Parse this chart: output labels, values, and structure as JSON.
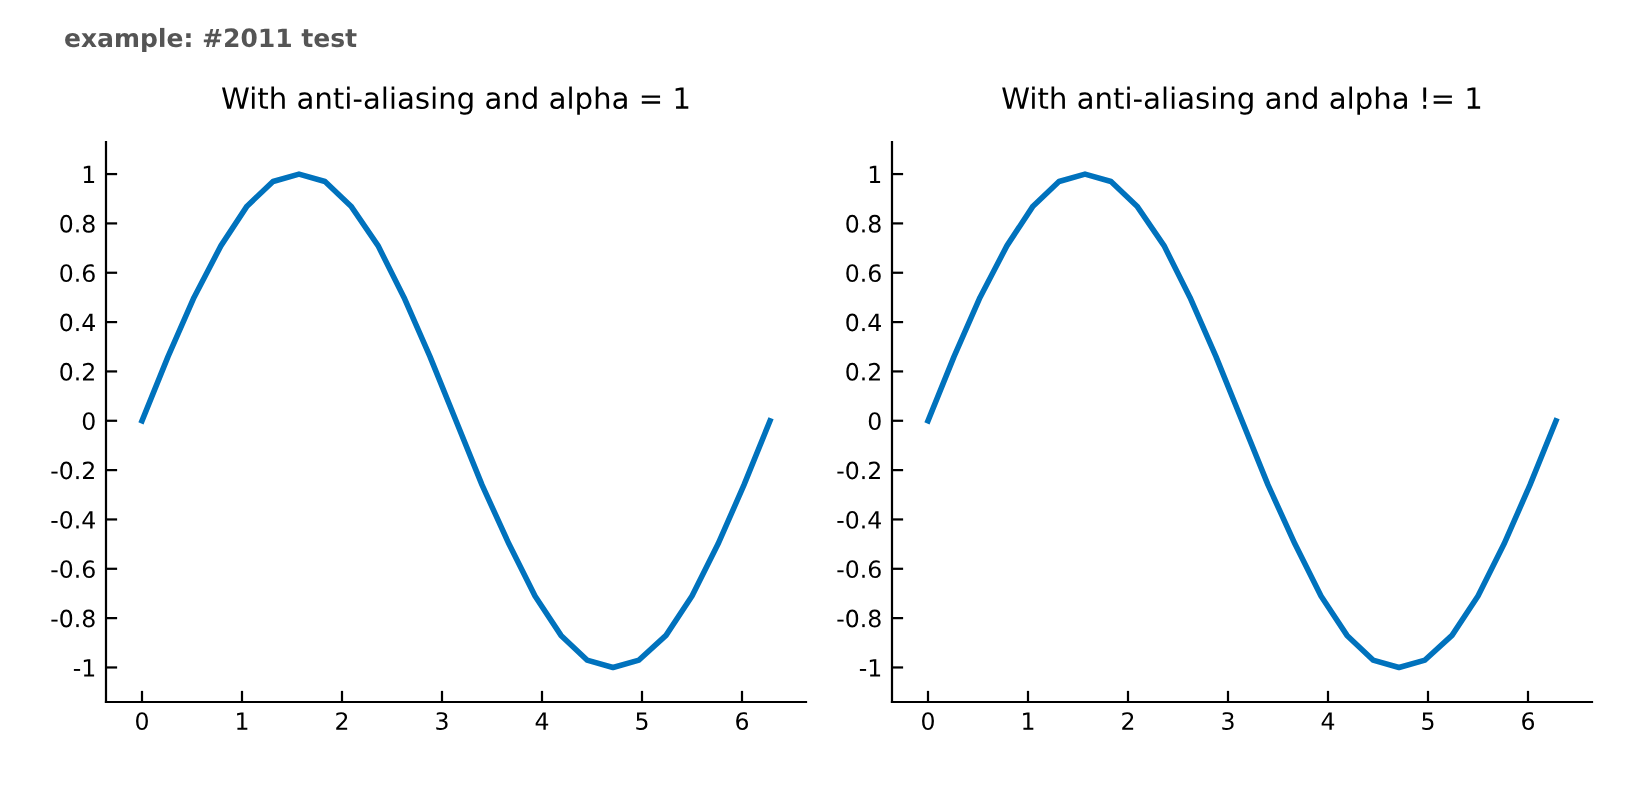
{
  "chart_data": [
    {
      "type": "line",
      "title": "With anti-aliasing and alpha = 1",
      "annotations": [
        "example: #2011 test"
      ],
      "x": [
        0,
        0.26,
        0.52,
        0.79,
        1.05,
        1.31,
        1.57,
        1.83,
        2.09,
        2.36,
        2.62,
        2.88,
        3.14,
        3.4,
        3.67,
        3.93,
        4.19,
        4.45,
        4.71,
        4.97,
        5.24,
        5.5,
        5.76,
        6.02,
        6.28
      ],
      "series": [
        {
          "color": "#0072bd",
          "values": [
            0,
            0.26,
            0.5,
            0.71,
            0.87,
            0.97,
            1,
            0.97,
            0.87,
            0.71,
            0.5,
            0.26,
            0,
            -0.26,
            -0.5,
            -0.71,
            -0.87,
            -0.97,
            -1,
            -0.97,
            -0.87,
            -0.71,
            -0.5,
            -0.26,
            0
          ]
        }
      ],
      "xlim": [
        -0.36,
        6.64
      ],
      "ylim": [
        -1.14,
        1.13
      ],
      "xticks": [
        0,
        1,
        2,
        3,
        4,
        5,
        6
      ],
      "yticks": [
        -1,
        -0.8,
        -0.6,
        -0.4,
        -0.2,
        0,
        0.2,
        0.4,
        0.6,
        0.8,
        1
      ],
      "grid": false,
      "legend": false,
      "line_style": "solid",
      "marker": "none"
    },
    {
      "type": "line",
      "title": "With anti-aliasing and alpha != 1",
      "x": [
        0,
        0.26,
        0.52,
        0.79,
        1.05,
        1.31,
        1.57,
        1.83,
        2.09,
        2.36,
        2.62,
        2.88,
        3.14,
        3.4,
        3.67,
        3.93,
        4.19,
        4.45,
        4.71,
        4.97,
        5.24,
        5.5,
        5.76,
        6.02,
        6.28
      ],
      "series": [
        {
          "color": "#0072bd",
          "values": [
            0,
            0.26,
            0.5,
            0.71,
            0.87,
            0.97,
            1,
            0.97,
            0.87,
            0.71,
            0.5,
            0.26,
            0,
            -0.26,
            -0.5,
            -0.71,
            -0.87,
            -0.97,
            -1,
            -0.97,
            -0.87,
            -0.71,
            -0.5,
            -0.26,
            0
          ]
        }
      ],
      "xlim": [
        -0.36,
        6.64
      ],
      "ylim": [
        -1.14,
        1.13
      ],
      "xticks": [
        0,
        1,
        2,
        3,
        4,
        5,
        6
      ],
      "yticks": [
        -1,
        -0.8,
        -0.6,
        -0.4,
        -0.2,
        0,
        0.2,
        0.4,
        0.6,
        0.8,
        1
      ],
      "grid": false,
      "legend": false,
      "line_style": "solid",
      "marker": "none"
    }
  ]
}
